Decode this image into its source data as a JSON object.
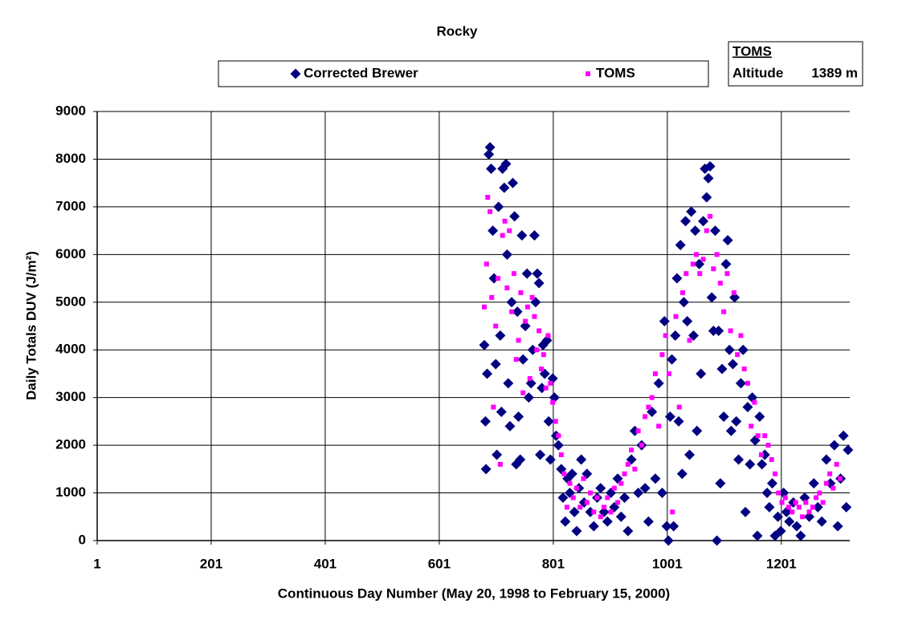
{
  "chart_data": {
    "type": "scatter",
    "title": "Rocky",
    "xlabel": "Continuous Day Number (May 20, 1998 to February 15, 2000)",
    "ylabel": "Daily Totals DUV (J/m²)",
    "annotation": {
      "title": "TOMS",
      "label": "Altitude",
      "value": "1389 m"
    },
    "xlim": [
      1,
      1321
    ],
    "xticks": [
      1,
      201,
      401,
      601,
      801,
      1001,
      1201
    ],
    "ylim": [
      0,
      9000
    ],
    "yticks": [
      0,
      1000,
      2000,
      3000,
      4000,
      5000,
      6000,
      7000,
      8000,
      9000
    ],
    "grid": true,
    "legend": "top",
    "series": [
      {
        "name": "Corrected Brewer",
        "color": "#000080",
        "marker": "diamond",
        "x": [
          680,
          682,
          683,
          685,
          688,
          690,
          692,
          695,
          697,
          700,
          702,
          705,
          708,
          710,
          712,
          715,
          718,
          720,
          722,
          725,
          728,
          730,
          733,
          736,
          738,
          740,
          743,
          746,
          748,
          752,
          755,
          758,
          762,
          765,
          768,
          770,
          773,
          776,
          778,
          781,
          783,
          786,
          790,
          793,
          796,
          800,
          803,
          806,
          810,
          815,
          818,
          822,
          826,
          830,
          834,
          838,
          842,
          846,
          850,
          855,
          860,
          866,
          872,
          878,
          884,
          890,
          896,
          902,
          908,
          914,
          920,
          926,
          932,
          938,
          944,
          950,
          956,
          962,
          968,
          974,
          980,
          986,
          992,
          996,
          1000,
          1003,
          1006,
          1009,
          1012,
          1015,
          1018,
          1021,
          1024,
          1027,
          1030,
          1033,
          1036,
          1040,
          1043,
          1047,
          1050,
          1053,
          1057,
          1060,
          1064,
          1067,
          1070,
          1073,
          1076,
          1079,
          1082,
          1085,
          1088,
          1091,
          1094,
          1097,
          1100,
          1104,
          1107,
          1110,
          1113,
          1116,
          1119,
          1122,
          1126,
          1130,
          1134,
          1138,
          1142,
          1146,
          1150,
          1155,
          1159,
          1163,
          1167,
          1172,
          1176,
          1180,
          1185,
          1190,
          1195,
          1200,
          1205,
          1210,
          1215,
          1222,
          1228,
          1235,
          1242,
          1250,
          1258,
          1265,
          1272,
          1280,
          1287,
          1294,
          1300,
          1305,
          1310,
          1315,
          1318
        ],
        "values": [
          4100,
          2500,
          1500,
          3500,
          8100,
          8250,
          7800,
          6500,
          5500,
          3700,
          1800,
          7000,
          4300,
          2700,
          7800,
          7400,
          7900,
          6000,
          3300,
          2400,
          5000,
          7500,
          6800,
          1600,
          4800,
          2600,
          1700,
          6400,
          3800,
          4500,
          5600,
          3000,
          3300,
          4000,
          6400,
          5000,
          5600,
          5400,
          1800,
          3200,
          4100,
          3500,
          4200,
          2500,
          1700,
          3400,
          3000,
          2200,
          2000,
          1500,
          900,
          400,
          1300,
          1000,
          1400,
          600,
          200,
          1100,
          1700,
          800,
          1400,
          600,
          300,
          900,
          1100,
          600,
          400,
          1000,
          700,
          1300,
          500,
          900,
          200,
          1700,
          2300,
          1000,
          2000,
          1100,
          400,
          2700,
          1300,
          3300,
          1000,
          4600,
          300,
          0,
          2600,
          3800,
          300,
          4300,
          5500,
          2500,
          6200,
          1400,
          5000,
          6700,
          4600,
          1800,
          6900,
          4300,
          6500,
          2300,
          5800,
          3500,
          6700,
          7800,
          7200,
          7600,
          7850,
          5100,
          4400,
          6500,
          0,
          4400,
          1200,
          3600,
          2600,
          5800,
          6300,
          4000,
          2300,
          3700,
          5100,
          2500,
          1700,
          3300,
          4000,
          600,
          2800,
          1600,
          3000,
          2100,
          100,
          2600,
          1600,
          1800,
          1000,
          700,
          1200,
          100,
          500,
          200,
          1000,
          600,
          400,
          800,
          300,
          100,
          900,
          500,
          1200,
          700,
          400,
          1700,
          1200,
          2000,
          300,
          1300,
          2200,
          700,
          1900
        ]
      },
      {
        "name": "TOMS",
        "color": "#ff00ff",
        "marker": "square",
        "x": [
          680,
          684,
          686,
          690,
          693,
          696,
          700,
          704,
          708,
          712,
          716,
          720,
          724,
          728,
          732,
          736,
          740,
          744,
          748,
          752,
          756,
          760,
          764,
          768,
          772,
          776,
          780,
          784,
          788,
          792,
          796,
          800,
          805,
          810,
          815,
          820,
          825,
          830,
          836,
          842,
          848,
          854,
          860,
          866,
          872,
          878,
          884,
          890,
          896,
          902,
          908,
          914,
          920,
          926,
          932,
          938,
          944,
          950,
          956,
          962,
          968,
          974,
          980,
          986,
          992,
          998,
          1004,
          1010,
          1016,
          1022,
          1028,
          1034,
          1040,
          1046,
          1052,
          1058,
          1064,
          1070,
          1076,
          1082,
          1088,
          1094,
          1100,
          1106,
          1112,
          1118,
          1124,
          1130,
          1136,
          1142,
          1148,
          1154,
          1160,
          1166,
          1172,
          1178,
          1184,
          1190,
          1196,
          1202,
          1208,
          1214,
          1220,
          1226,
          1232,
          1238,
          1244,
          1250,
          1256,
          1262,
          1268,
          1274,
          1280,
          1286,
          1292,
          1298,
          1304
        ],
        "values": [
          4900,
          5800,
          7200,
          6900,
          5100,
          2800,
          4500,
          5500,
          1600,
          6400,
          6700,
          5300,
          6500,
          4800,
          5600,
          3800,
          4200,
          5200,
          3100,
          4600,
          4900,
          3400,
          5100,
          4700,
          4000,
          4400,
          3600,
          3900,
          3200,
          4300,
          3300,
          2900,
          2500,
          2200,
          1800,
          1400,
          700,
          1200,
          900,
          1100,
          700,
          1300,
          800,
          1000,
          600,
          900,
          500,
          700,
          900,
          600,
          1100,
          800,
          1200,
          1400,
          1600,
          1900,
          1500,
          2300,
          2000,
          2600,
          2800,
          3000,
          3500,
          2400,
          3900,
          4300,
          3500,
          600,
          4700,
          2800,
          5200,
          5600,
          4200,
          5800,
          6000,
          5600,
          5900,
          6500,
          6800,
          5700,
          6000,
          5400,
          4800,
          5600,
          4400,
          5200,
          3900,
          4300,
          3600,
          3300,
          2400,
          2900,
          2200,
          1800,
          2200,
          2000,
          1700,
          1400,
          1000,
          800,
          900,
          700,
          600,
          800,
          700,
          500,
          800,
          600,
          700,
          900,
          1000,
          800,
          1200,
          1400,
          1100,
          1600,
          1300
        ]
      }
    ]
  }
}
